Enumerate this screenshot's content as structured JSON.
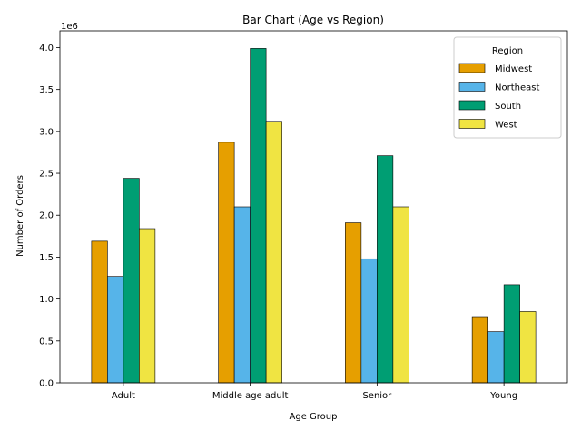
{
  "chart_data": {
    "type": "bar",
    "title": "Bar Chart (Age vs Region)",
    "xlabel": "Age Group",
    "ylabel": "Number of Orders",
    "y_offset_label": "1e6",
    "categories": [
      "Adult",
      "Middle age adult",
      "Senior",
      "Young"
    ],
    "series": [
      {
        "name": "Midwest",
        "color": "#E69F00",
        "values": [
          1690000,
          2870000,
          1910000,
          790000
        ]
      },
      {
        "name": "Northeast",
        "color": "#56B4E9",
        "values": [
          1270000,
          2100000,
          1480000,
          610000
        ]
      },
      {
        "name": "South",
        "color": "#009E73",
        "values": [
          2440000,
          3990000,
          2710000,
          1170000
        ]
      },
      {
        "name": "West",
        "color": "#F0E442",
        "values": [
          1840000,
          3120000,
          2100000,
          850000
        ]
      }
    ],
    "ylim": [
      0,
      4200000
    ],
    "yticks": [
      0,
      500000,
      1000000,
      1500000,
      2000000,
      2500000,
      3000000,
      3500000,
      4000000
    ],
    "ytick_labels": [
      "0.0",
      "0.5",
      "1.0",
      "1.5",
      "2.0",
      "2.5",
      "3.0",
      "3.5",
      "4.0"
    ],
    "legend": {
      "title": "Region",
      "placement": "top-right"
    },
    "grid": false
  }
}
